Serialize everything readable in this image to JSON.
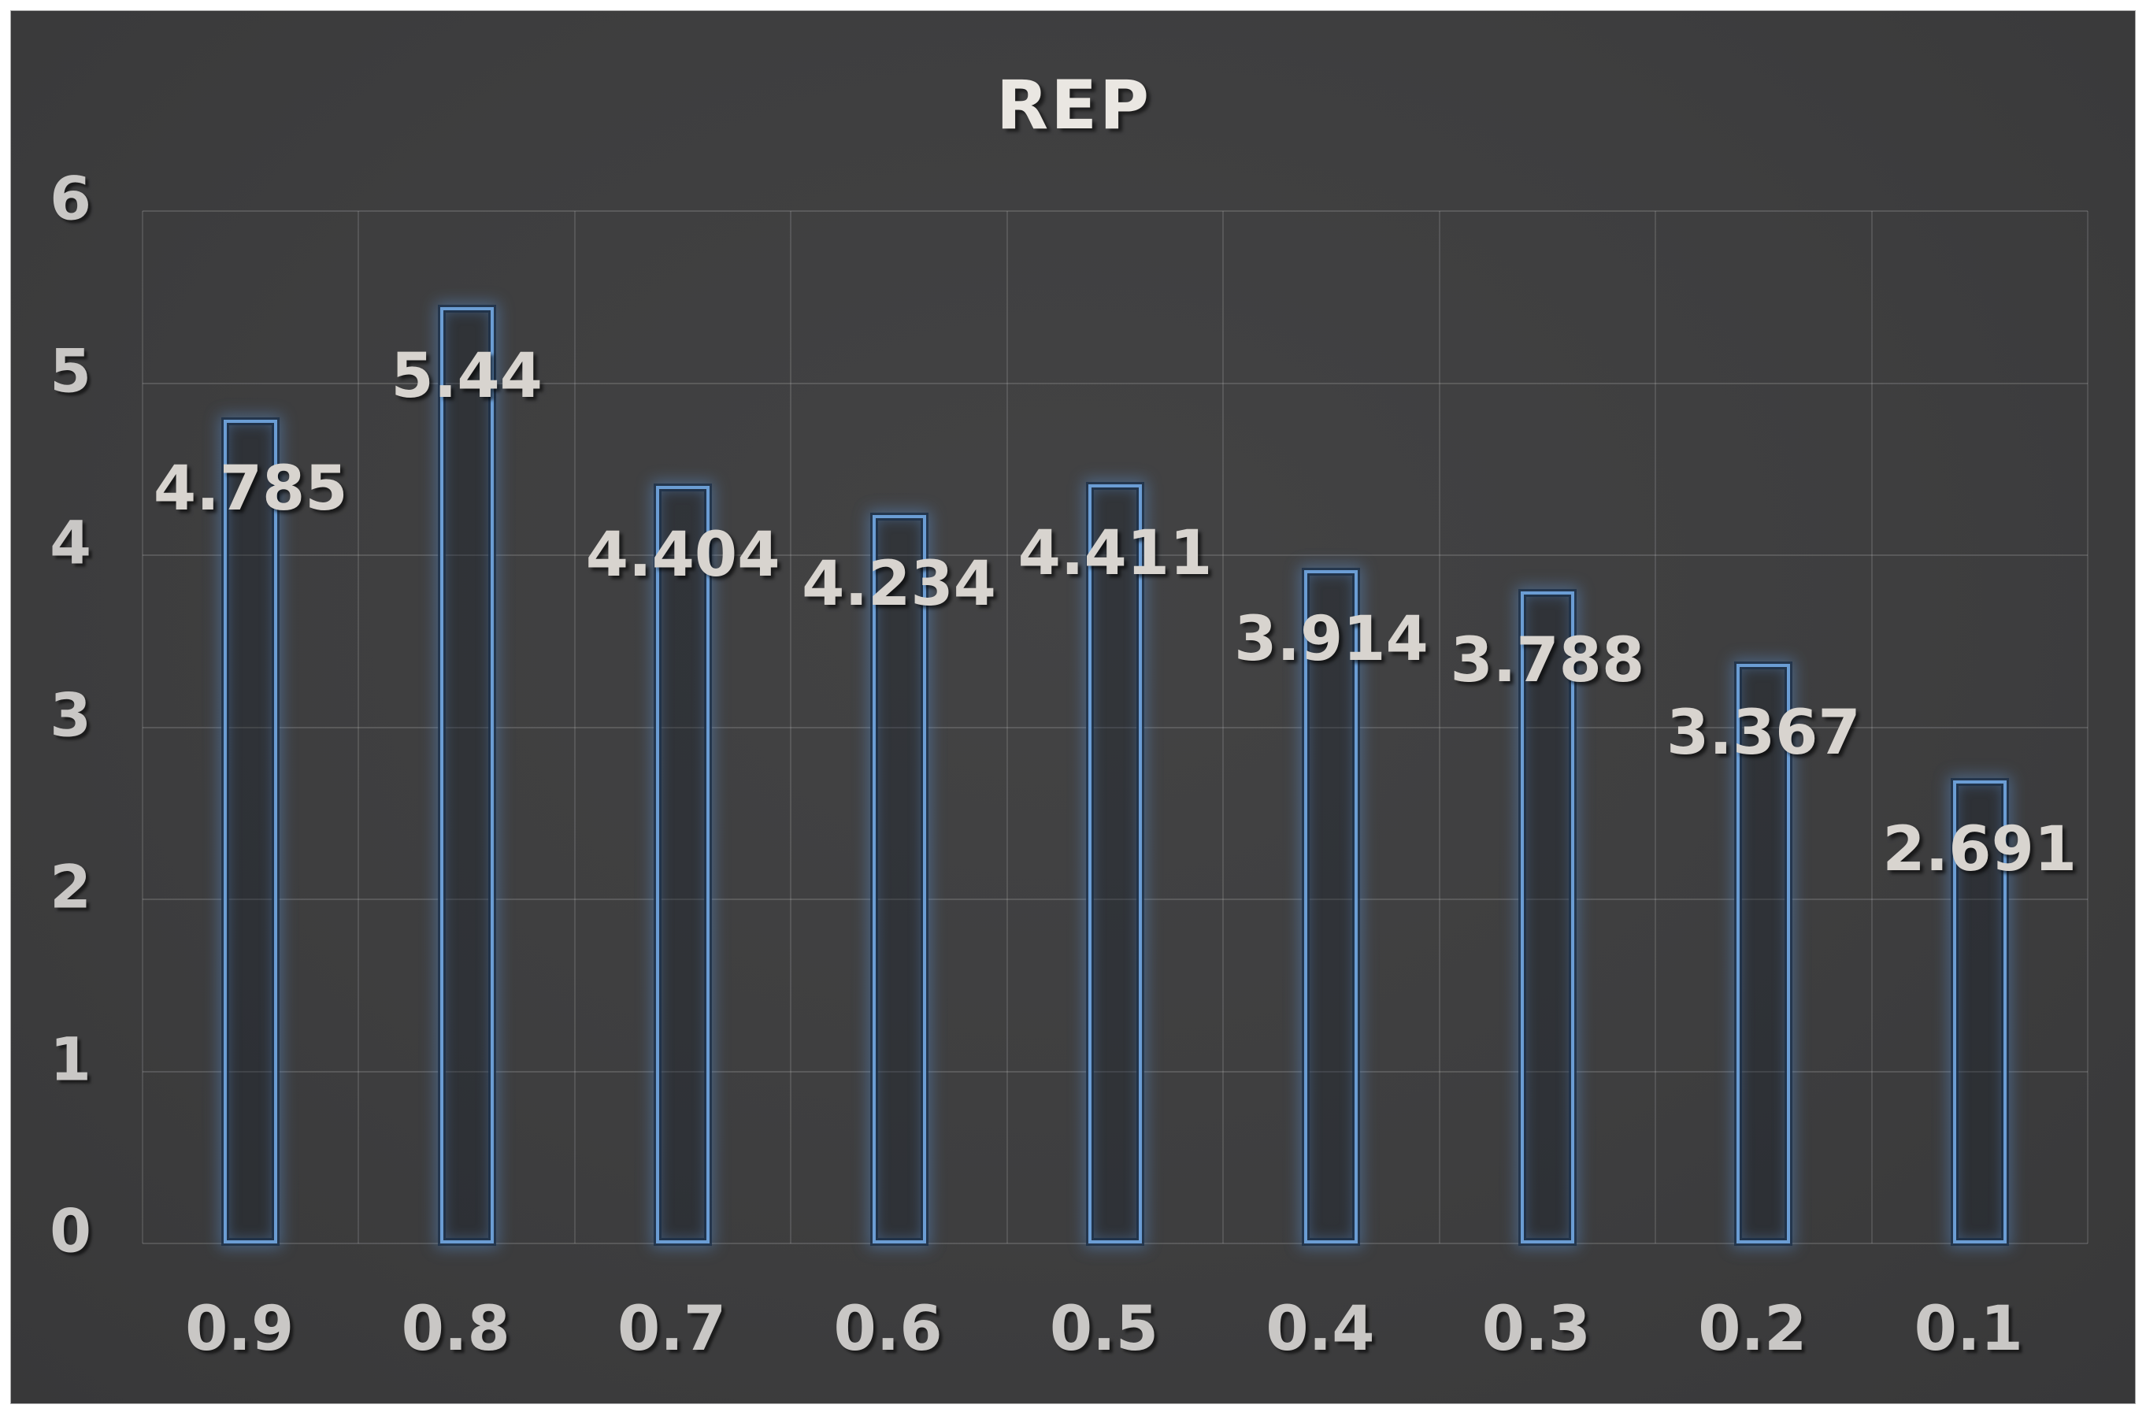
{
  "chart_data": {
    "type": "bar",
    "title": "REP",
    "categories": [
      "0.9",
      "0.8",
      "0.7",
      "0.6",
      "0.5",
      "0.4",
      "0.3",
      "0.2",
      "0.1"
    ],
    "values": [
      4.785,
      5.44,
      4.404,
      4.234,
      4.411,
      3.914,
      3.788,
      3.367,
      2.691
    ],
    "data_labels": [
      "4.785",
      "5.44",
      "4.404",
      "4.234",
      "4.411",
      "3.914",
      "3.788",
      "3.367",
      "2.691"
    ],
    "xlabel": "",
    "ylabel": "",
    "ylim": [
      0,
      6
    ],
    "yticks": [
      0,
      1,
      2,
      3,
      4,
      5,
      6
    ],
    "grid": true,
    "legend": false,
    "bar_style": "hollow-outline-glow",
    "label_position": "inside-end",
    "colors": {
      "panel_background": "#3e3e3f",
      "outer_background": "#ffffff",
      "bar_outline": "#6b9dd4",
      "bar_glow": "#60a0e2",
      "gridline": "#5a5a5c",
      "data_label": "#d8d4cf",
      "tick_label": "#c9c7c5",
      "title": "#eae7e2"
    }
  }
}
